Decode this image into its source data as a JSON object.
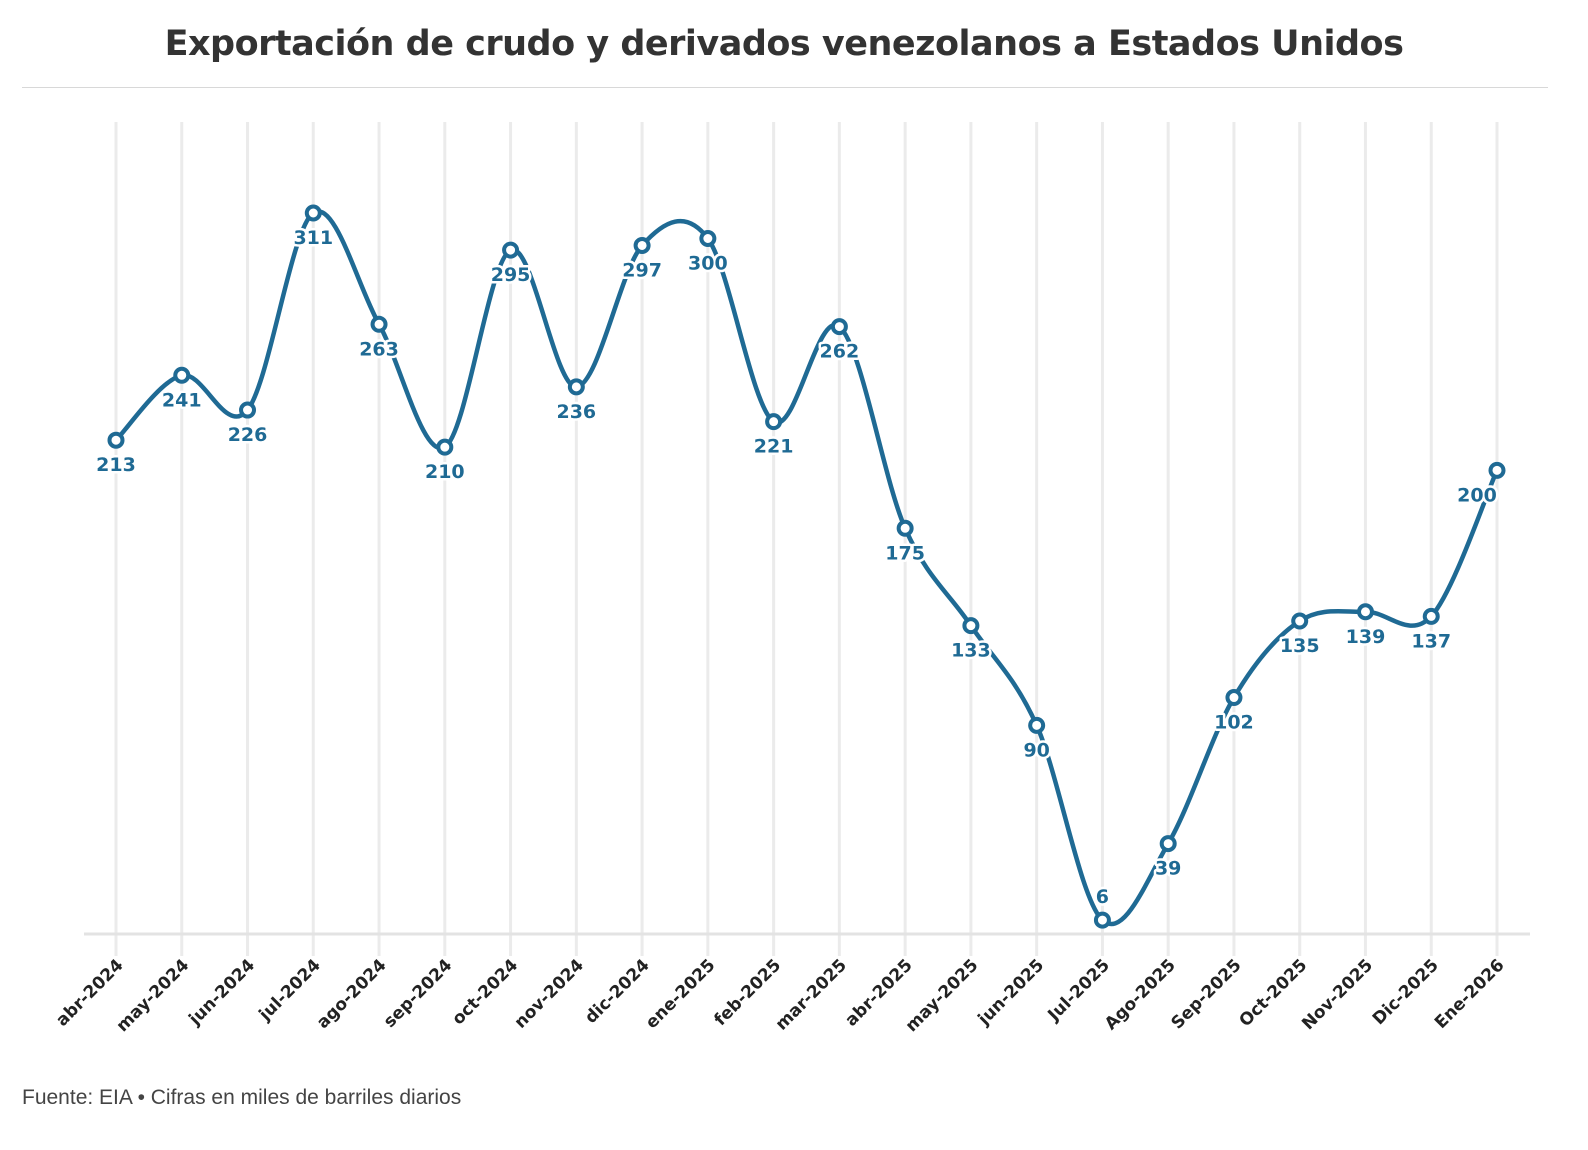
{
  "title": "Exportación de crudo y derivados venezolanos a Estados Unidos",
  "source": "Fuente: EIA • Cifras en miles de barriles diarios",
  "chart_data": {
    "type": "line",
    "title": "Exportación de crudo y derivados venezolanos a Estados Unidos",
    "xlabel": "",
    "ylabel": "",
    "ylim": [
      0,
      311
    ],
    "grid": "vertical",
    "curve": "smooth",
    "color": "#1f6a94",
    "categories": [
      "abr-2024",
      "may-2024",
      "jun-2024",
      "jul-2024",
      "ago-2024",
      "sep-2024",
      "oct-2024",
      "nov-2024",
      "dic-2024",
      "ene-2025",
      "feb-2025",
      "mar-2025",
      "abr-2025",
      "may-2025",
      "jun-2025",
      "Jul-2025",
      "Ago-2025",
      "Sep-2025",
      "Oct-2025",
      "Nov-2025",
      "Dic-2025",
      "Ene-2026"
    ],
    "values": [
      213,
      241,
      226,
      311,
      263,
      210,
      295,
      236,
      297,
      300,
      221,
      262,
      175,
      133,
      90,
      6,
      39,
      102,
      135,
      139,
      137,
      200
    ]
  }
}
